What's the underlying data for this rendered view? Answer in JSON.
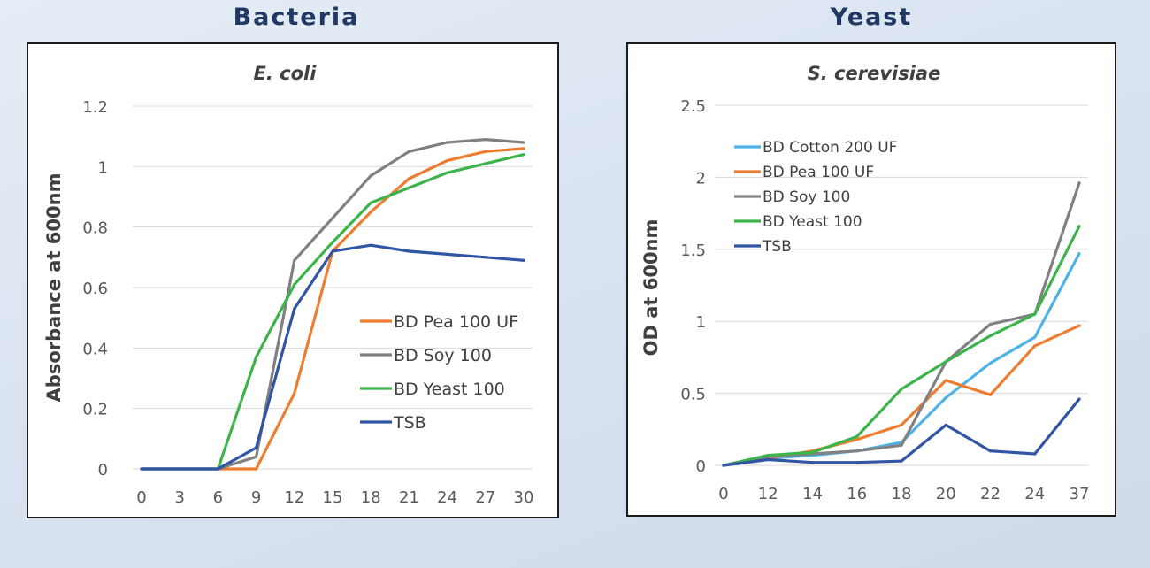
{
  "panels": [
    {
      "heading": "Bacteria"
    },
    {
      "heading": "Yeast"
    }
  ],
  "chart_data": [
    {
      "type": "line",
      "title": "E. coli",
      "xlabel": "",
      "ylabel": "Absorbance at 600nm",
      "categories": [
        "0",
        "3",
        "6",
        "9",
        "12",
        "15",
        "18",
        "21",
        "24",
        "27",
        "30"
      ],
      "ylim": [
        0,
        1.2
      ],
      "yticks": [
        "0",
        "0.2",
        "0.4",
        "0.6",
        "0.8",
        "1",
        "1.2"
      ],
      "grid": true,
      "legend_position": "right",
      "series": [
        {
          "name": "BD Pea 100 UF",
          "color": "#ed7d31",
          "values": [
            0,
            0,
            0,
            0,
            0.25,
            0.72,
            0.85,
            0.96,
            1.02,
            1.05,
            1.06
          ]
        },
        {
          "name": "BD Soy 100",
          "color": "#808080",
          "values": [
            0,
            0,
            0,
            0.04,
            0.69,
            0.83,
            0.97,
            1.05,
            1.08,
            1.09,
            1.08
          ]
        },
        {
          "name": "BD Yeast 100",
          "color": "#3cb44b",
          "values": [
            0,
            0,
            0,
            0.37,
            0.61,
            0.75,
            0.88,
            0.93,
            0.98,
            1.01,
            1.04
          ]
        },
        {
          "name": "TSB",
          "color": "#2f55a4",
          "values": [
            0,
            0,
            0,
            0.07,
            0.53,
            0.72,
            0.74,
            0.72,
            0.71,
            0.7,
            0.69
          ]
        }
      ]
    },
    {
      "type": "line",
      "title": "S. cerevisiae",
      "xlabel": "",
      "ylabel": "OD at 600nm",
      "categories": [
        "0",
        "12",
        "14",
        "16",
        "18",
        "20",
        "22",
        "24",
        "37"
      ],
      "ylim": [
        0,
        2.5
      ],
      "yticks": [
        "0",
        "0.5",
        "1",
        "1.5",
        "2",
        "2.5"
      ],
      "grid": true,
      "legend_position": "top-left",
      "series": [
        {
          "name": "BD Cotton 200 UF",
          "color": "#4db3e6",
          "values": [
            0,
            0.05,
            0.07,
            0.1,
            0.16,
            0.47,
            0.71,
            0.89,
            1.47
          ]
        },
        {
          "name": "BD Pea 100 UF",
          "color": "#ed7d31",
          "values": [
            0,
            0.05,
            0.1,
            0.18,
            0.28,
            0.59,
            0.49,
            0.83,
            0.97
          ]
        },
        {
          "name": "BD Soy 100",
          "color": "#808080",
          "values": [
            0,
            0.06,
            0.08,
            0.1,
            0.14,
            0.72,
            0.98,
            1.05,
            1.96
          ]
        },
        {
          "name": "BD Yeast 100",
          "color": "#3cb44b",
          "values": [
            0,
            0.07,
            0.09,
            0.2,
            0.53,
            0.72,
            0.9,
            1.05,
            1.66
          ]
        },
        {
          "name": "TSB",
          "color": "#2f55a4",
          "values": [
            0,
            0.04,
            0.02,
            0.02,
            0.03,
            0.28,
            0.1,
            0.08,
            0.46
          ]
        }
      ]
    }
  ]
}
